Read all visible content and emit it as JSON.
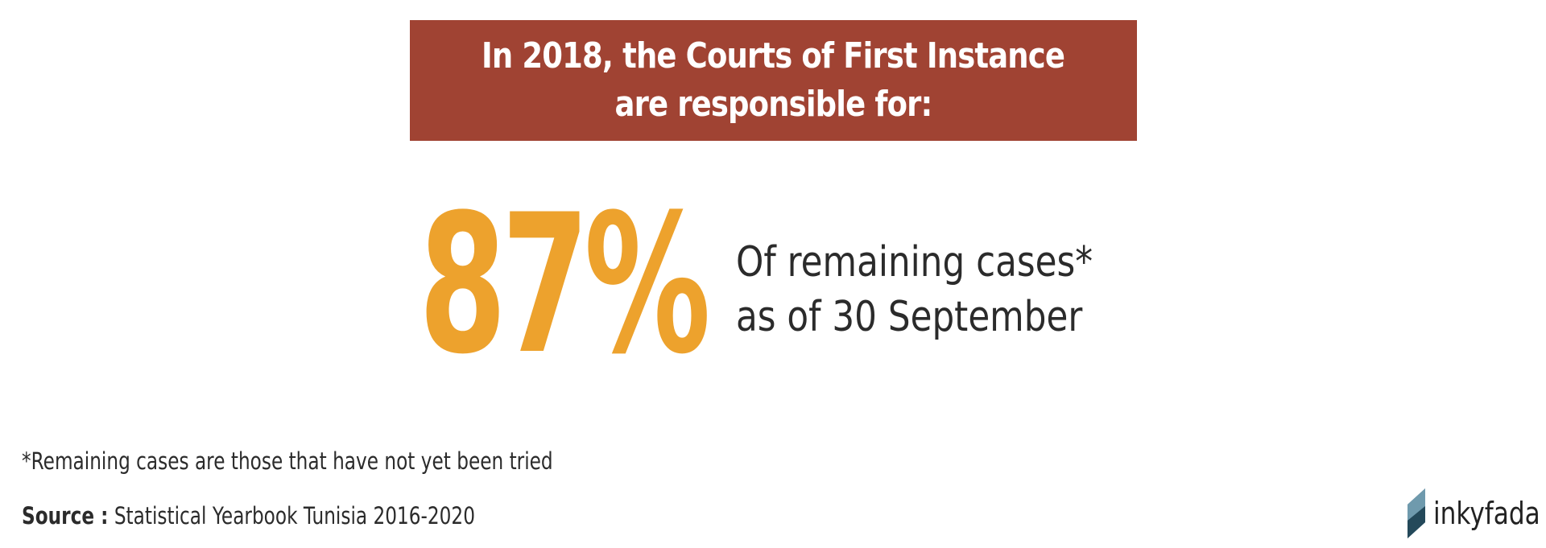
{
  "title": {
    "line1": "In 2018, the Courts of First Instance",
    "line2": "are responsible for:"
  },
  "stat": {
    "value": "87%",
    "description_line1": "Of remaining cases*",
    "description_line2": "as of 30 September"
  },
  "footnote": "*Remaining cases are those that have not yet been tried",
  "source": {
    "label": "Source :",
    "text": "Statistical Yearbook Tunisia 2016-2020"
  },
  "brand": {
    "name": "inkyfada",
    "icon": "inkyfada-logo-icon"
  },
  "colors": {
    "banner": "#a04333",
    "accent": "#eda22d",
    "text": "#2b2b2b"
  }
}
